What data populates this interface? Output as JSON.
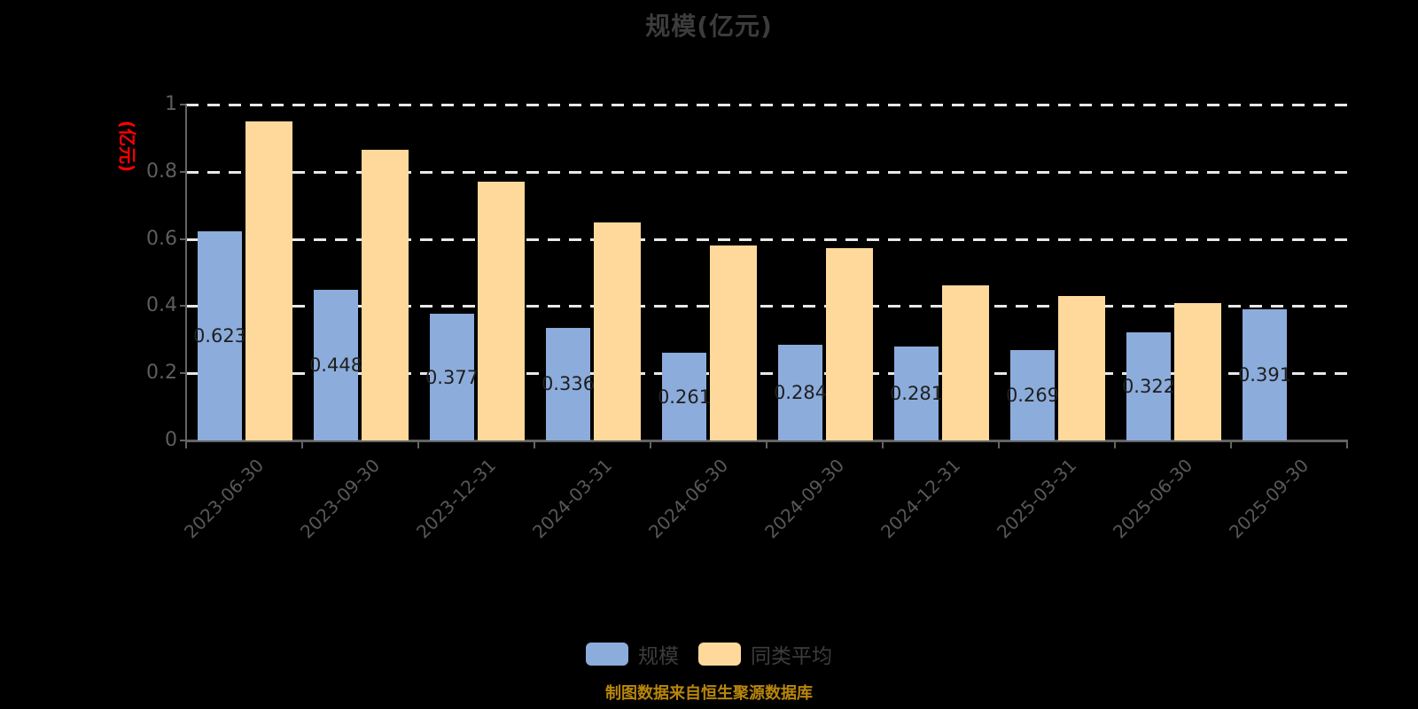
{
  "title": "规模(亿元)",
  "footer": "制图数据来自恒生聚源数据库",
  "colors": {
    "scale_series": "#8CACDB",
    "peer_series": "#FED99B",
    "y_axis_name": "#FF0000",
    "footer_text": "#B8860B"
  },
  "legend": [
    {
      "label": "规模",
      "color_key": "scale_series"
    },
    {
      "label": "同类平均",
      "color_key": "peer_series"
    }
  ],
  "chart_data": {
    "type": "bar",
    "title": "规模(亿元)",
    "ylabel": "(亿元)",
    "xlabel": "",
    "ylim": [
      0,
      1
    ],
    "yticks": [
      0,
      0.2,
      0.4,
      0.6,
      0.8,
      1
    ],
    "ytick_labels": [
      "0",
      "0.2",
      "0.4",
      "0.6",
      "0.8",
      "1"
    ],
    "grid": "dashed horizontal",
    "legend_position": "bottom",
    "categories": [
      "2023-06-30",
      "2023-09-30",
      "2023-12-31",
      "2024-03-31",
      "2024-06-30",
      "2024-09-30",
      "2024-12-31",
      "2025-03-31",
      "2025-06-30",
      "2025-09-30"
    ],
    "series": [
      {
        "name": "规模",
        "values": [
          0.623,
          0.448,
          0.377,
          0.336,
          0.261,
          0.284,
          0.281,
          0.269,
          0.322,
          0.391
        ],
        "data_labels": [
          "0.623",
          "0.448",
          "0.377",
          "0.336",
          "0.261",
          "0.284",
          "0.281",
          "0.269",
          "0.322",
          "0.391"
        ]
      },
      {
        "name": "同类平均",
        "values": [
          0.95,
          0.865,
          0.77,
          0.65,
          0.58,
          0.573,
          0.462,
          0.43,
          0.41,
          null
        ],
        "data_labels": null
      }
    ]
  }
}
